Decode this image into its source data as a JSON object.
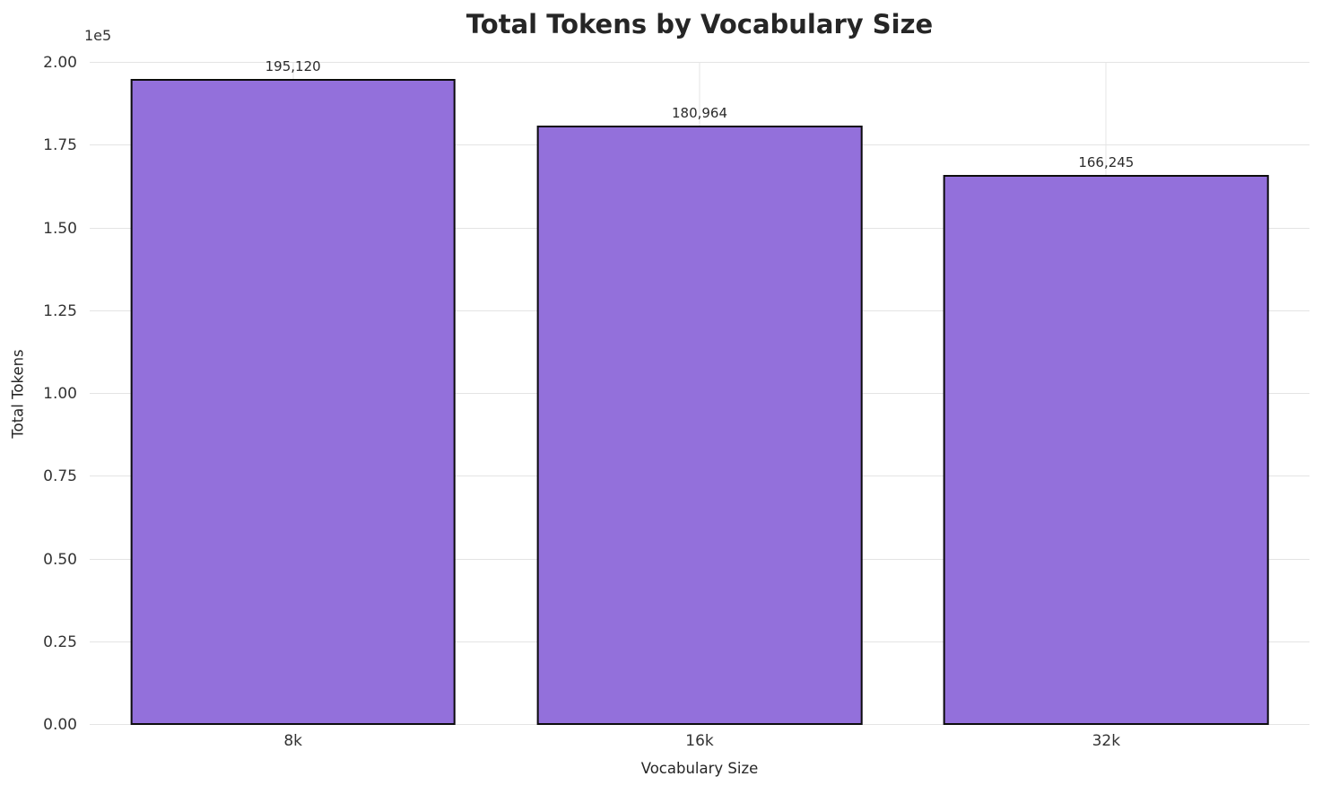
{
  "chart_data": {
    "type": "bar",
    "title": "Total Tokens by Vocabulary Size",
    "xlabel": "Vocabulary Size",
    "ylabel": "Total Tokens",
    "categories": [
      "8k",
      "16k",
      "32k"
    ],
    "values": [
      195120,
      180964,
      166245
    ],
    "value_labels": [
      "195,120",
      "180,964",
      "166,245"
    ],
    "ylim": [
      0,
      200000
    ],
    "y_ticks": [
      0,
      25000,
      50000,
      75000,
      100000,
      125000,
      150000,
      175000,
      200000
    ],
    "y_tick_labels": [
      "0.00",
      "0.25",
      "0.50",
      "0.75",
      "1.00",
      "1.25",
      "1.50",
      "1.75",
      "2.00"
    ],
    "y_multiplier_label": "1e5",
    "grid": true,
    "legend": null,
    "bar_color": "#9370db",
    "bar_edge_color": "#0d0d0d",
    "background_color": "#ffffff",
    "grid_color": "#e4e4e4"
  }
}
